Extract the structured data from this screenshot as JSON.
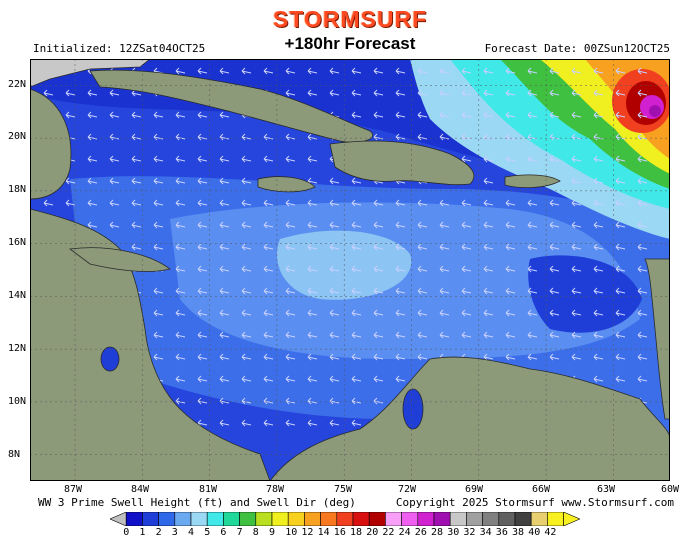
{
  "header": {
    "logo_text": "STORMSURF",
    "initialized": "Initialized: 12ZSat04OCT25",
    "forecast_title": "+180hr Forecast",
    "forecast_date": "Forecast Date: 00ZSun12OCT25"
  },
  "map": {
    "region": "Caribbean Sea",
    "lat_labels": [
      "22N",
      "20N",
      "18N",
      "16N",
      "14N",
      "12N",
      "10N",
      "8N"
    ],
    "lon_labels": [
      "87W",
      "84W",
      "81W",
      "78W",
      "75W",
      "72W",
      "69W",
      "66W",
      "63W",
      "60W"
    ],
    "lat_range": [
      7,
      23
    ],
    "lon_range": [
      -88,
      -60
    ],
    "land_color": "#8c9a7a",
    "ocean_color": "#3560e8",
    "arrow_color": "#c8d0ff",
    "arrow_direction_deg": 270,
    "high_swell_location": "22N 62W"
  },
  "footer": {
    "left_caption": "WW 3 Prime Swell Height (ft) and Swell Dir (deg)",
    "right_caption": "Copyright 2025 Stormsurf www.Stormsurf.com"
  },
  "legend": {
    "labels": [
      "0",
      "1",
      "2",
      "3",
      "4",
      "5",
      "6",
      "7",
      "8",
      "9",
      "10",
      "12",
      "14",
      "16",
      "18",
      "20",
      "22",
      "24",
      "26",
      "28",
      "30",
      "32",
      "34",
      "36",
      "38",
      "40",
      "42"
    ],
    "colors": [
      "#1010c8",
      "#1f3ed8",
      "#2f68e8",
      "#6aa8f0",
      "#9ad8f4",
      "#40e8e8",
      "#20d89a",
      "#40c040",
      "#b8e020",
      "#f0f020",
      "#f8d020",
      "#f8a020",
      "#f87820",
      "#f04020",
      "#d81010",
      "#b00000",
      "#f8a0f8",
      "#f060f0",
      "#d020d0",
      "#a010b0",
      "#c8c8c8",
      "#a0a0a0",
      "#808080",
      "#606060",
      "#404040",
      "#e8d070",
      "#f8f020"
    ]
  }
}
